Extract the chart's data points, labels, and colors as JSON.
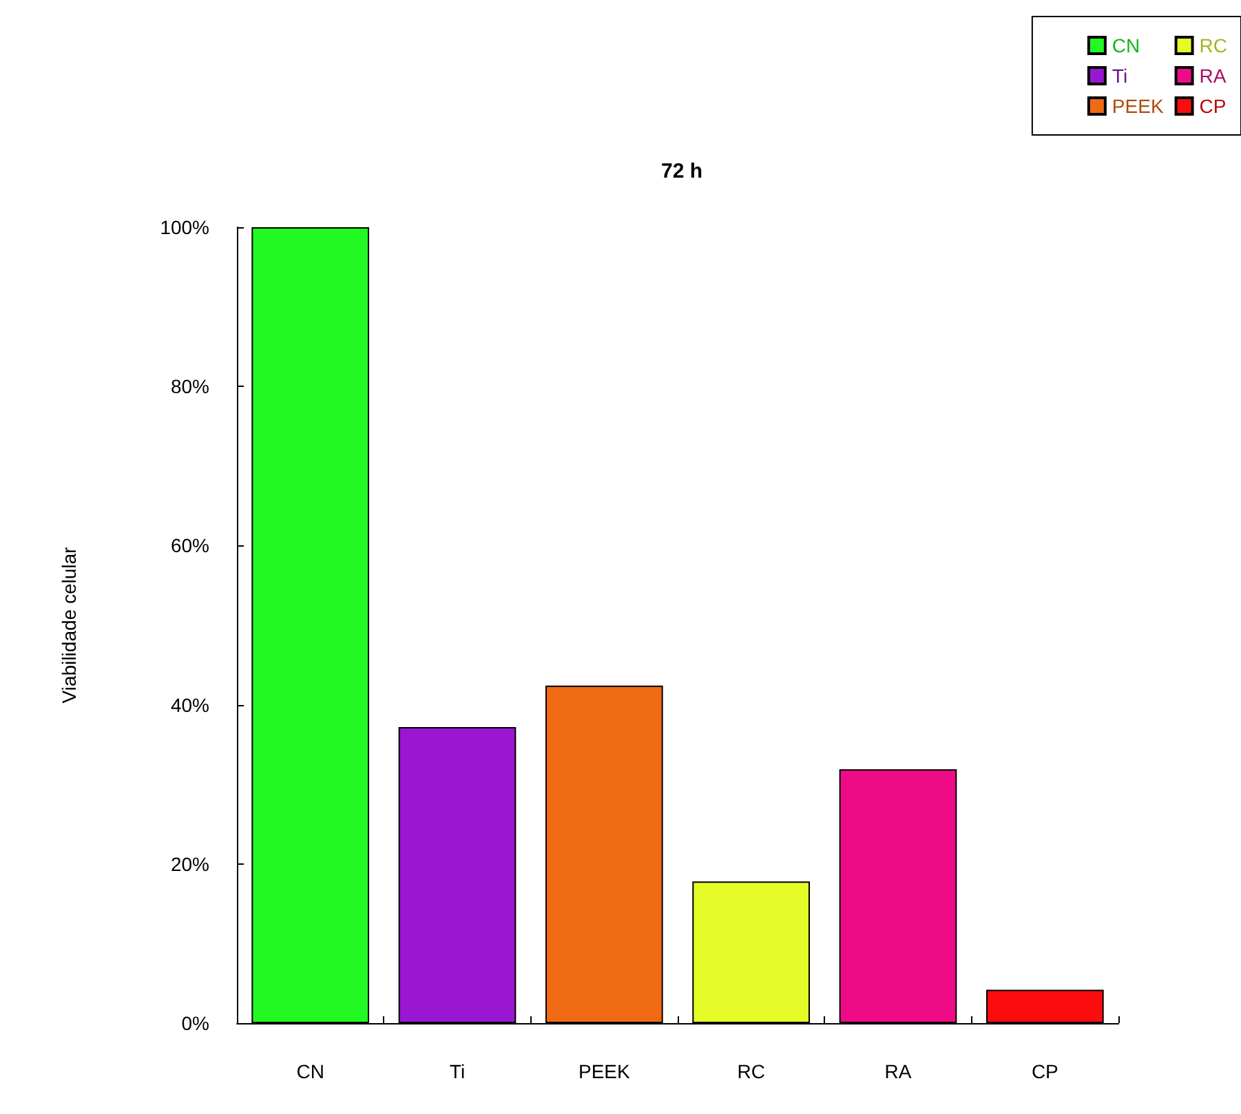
{
  "chart_data": {
    "type": "bar",
    "title": "72 h",
    "ylabel": "Viabilidade celular",
    "categories": [
      "CN",
      "Ti",
      "PEEK",
      "RC",
      "RA",
      "CP"
    ],
    "stacked": true,
    "series": [
      {
        "name": "CN",
        "color": "#22f922",
        "values": [
          100,
          null,
          null,
          null,
          null,
          null
        ]
      },
      {
        "name": "Ti",
        "color": "#9a17d2",
        "values": [
          null,
          37.2,
          null,
          null,
          null,
          null
        ]
      },
      {
        "name": "PEEK",
        "color": "#f06a14",
        "values": [
          null,
          null,
          42.4,
          null,
          null,
          null
        ]
      },
      {
        "name": "RC",
        "color": "#e5fb27",
        "values": [
          null,
          null,
          null,
          17.8,
          null,
          null
        ]
      },
      {
        "name": "RA",
        "color": "#ef0b86",
        "values": [
          null,
          null,
          null,
          null,
          31.9,
          null
        ]
      },
      {
        "name": "CP",
        "color": "#fb0d0d",
        "values": [
          null,
          null,
          null,
          null,
          null,
          4.2
        ]
      }
    ],
    "ylim": [
      0,
      100
    ],
    "yticks": [
      {
        "value": 0,
        "label": "0%"
      },
      {
        "value": 20,
        "label": "20%"
      },
      {
        "value": 40,
        "label": "40%"
      },
      {
        "value": 60,
        "label": "60%"
      },
      {
        "value": 80,
        "label": "80%"
      },
      {
        "value": 100,
        "label": "100%"
      }
    ],
    "grid": false,
    "legend": "top right"
  }
}
